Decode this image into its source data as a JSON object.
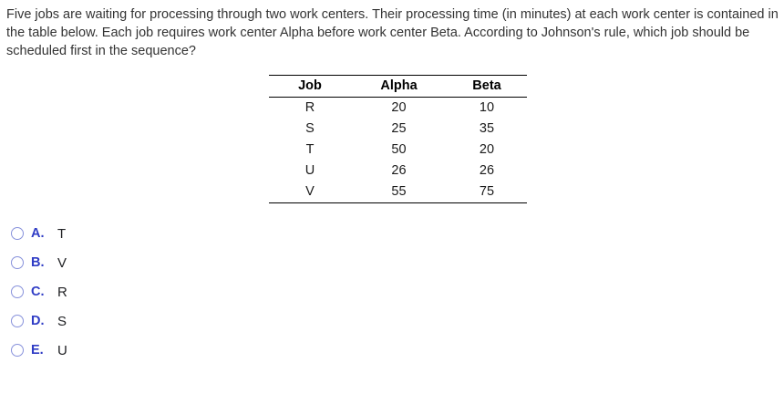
{
  "question": {
    "text": "Five jobs are waiting for processing through two work centers. Their processing time (in minutes) at each work center is contained in the table below. Each job requires work center Alpha before work center Beta. According to Johnson's rule, which job should be scheduled first in the sequence?"
  },
  "table": {
    "headers": [
      "Job",
      "Alpha",
      "Beta"
    ],
    "rows": [
      {
        "job": "R",
        "alpha": "20",
        "beta": "10"
      },
      {
        "job": "S",
        "alpha": "25",
        "beta": "35"
      },
      {
        "job": "T",
        "alpha": "50",
        "beta": "20"
      },
      {
        "job": "U",
        "alpha": "26",
        "beta": "26"
      },
      {
        "job": "V",
        "alpha": "55",
        "beta": "75"
      }
    ]
  },
  "options": [
    {
      "letter": "A.",
      "label": "T"
    },
    {
      "letter": "B.",
      "label": "V"
    },
    {
      "letter": "C.",
      "label": "R"
    },
    {
      "letter": "D.",
      "label": "S"
    },
    {
      "letter": "E.",
      "label": "U"
    }
  ],
  "colors": {
    "question_text": "#333333",
    "option_letter": "#2f3cc5",
    "radio_border": "#8791db"
  }
}
